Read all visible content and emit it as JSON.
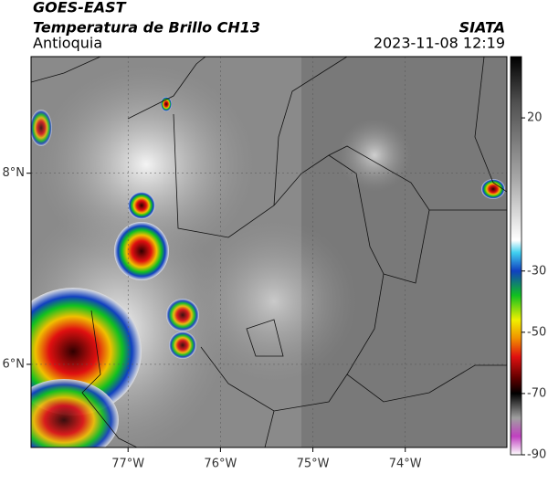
{
  "header": {
    "title": "GOES-EAST",
    "subtitle": "Temperatura de Brillo CH13",
    "source": "SIATA",
    "region": "Antioquia",
    "datetime": "2023-11-08 12:19"
  },
  "map": {
    "lonlim": [
      -78.05,
      -72.9
    ],
    "latlim": [
      5.13,
      9.22
    ],
    "lon_ticks": [
      {
        "value": -77,
        "label": "77°W"
      },
      {
        "value": -76,
        "label": "76°W"
      },
      {
        "value": -75,
        "label": "75°W"
      },
      {
        "value": -74,
        "label": "74°W"
      }
    ],
    "lat_ticks": [
      {
        "value": 8,
        "label": "8°N"
      },
      {
        "value": 6,
        "label": "6°N"
      }
    ]
  },
  "colorbar": {
    "lim": [
      -90,
      40
    ],
    "ticks": [
      20,
      -30,
      -50,
      -70,
      -90
    ],
    "stops": [
      {
        "value": 40,
        "color": "#000000"
      },
      {
        "value": 25,
        "color": "#505050"
      },
      {
        "value": 0,
        "color": "#a8a8a8"
      },
      {
        "value": -20,
        "color": "#ffffff"
      },
      {
        "value": -24,
        "color": "#40d0f0"
      },
      {
        "value": -30,
        "color": "#1040c0"
      },
      {
        "value": -38,
        "color": "#10c020"
      },
      {
        "value": -46,
        "color": "#f0f000"
      },
      {
        "value": -52,
        "color": "#f09000"
      },
      {
        "value": -58,
        "color": "#e01010"
      },
      {
        "value": -65,
        "color": "#600000"
      },
      {
        "value": -70,
        "color": "#000000"
      },
      {
        "value": -78,
        "color": "#a0a0a0"
      },
      {
        "value": -84,
        "color": "#c040c0"
      },
      {
        "value": -90,
        "color": "#ffffff"
      }
    ]
  }
}
